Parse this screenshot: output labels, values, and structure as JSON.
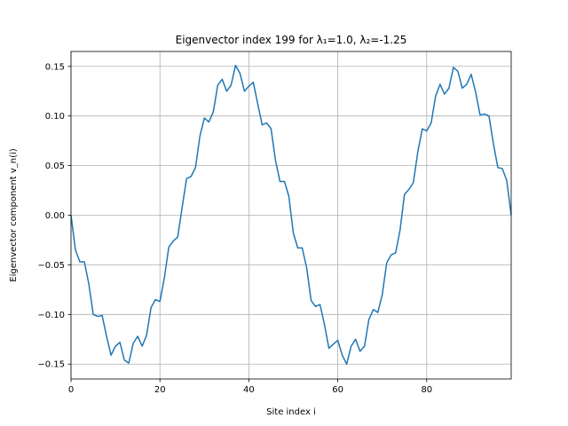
{
  "chart_data": {
    "type": "line",
    "title": "Eigenvector index 199 for λ₁=1.0, λ₂=-1.25",
    "xlabel": "Site index i",
    "ylabel": "Eigenvector component v_n(i)",
    "xlim": [
      0,
      99
    ],
    "ylim": [
      -0.165,
      0.165
    ],
    "xticks": [
      0,
      20,
      40,
      60,
      80
    ],
    "yticks": [
      -0.15,
      -0.1,
      -0.05,
      0.0,
      0.05,
      0.1,
      0.15
    ],
    "xtick_labels": [
      "0",
      "20",
      "40",
      "60",
      "80"
    ],
    "ytick_labels": [
      "−0.15",
      "−0.10",
      "−0.05",
      "0.00",
      "0.05",
      "0.10",
      "0.15"
    ],
    "grid": true,
    "series": [
      {
        "color": "#1f77b4",
        "x": [
          0,
          1,
          2,
          3,
          4,
          5,
          6,
          7,
          8,
          9,
          10,
          11,
          12,
          13,
          14,
          15,
          16,
          17,
          18,
          19,
          20,
          21,
          22,
          23,
          24,
          25,
          26,
          27,
          28,
          29,
          30,
          31,
          32,
          33,
          34,
          35,
          36,
          37,
          38,
          39,
          40,
          41,
          42,
          43,
          44,
          45,
          46,
          47,
          48,
          49,
          50,
          51,
          52,
          53,
          54,
          55,
          56,
          57,
          58,
          59,
          60,
          61,
          62,
          63,
          64,
          65,
          66,
          67,
          68,
          69,
          70,
          71,
          72,
          73,
          74,
          75,
          76,
          77,
          78,
          79,
          80,
          81,
          82,
          83,
          84,
          85,
          86,
          87,
          88,
          89,
          90,
          91,
          92,
          93,
          94,
          95,
          96,
          97,
          98,
          99
        ],
        "values": [
          0.0,
          -0.035,
          -0.047,
          -0.047,
          -0.069,
          -0.1,
          -0.102,
          -0.101,
          -0.122,
          -0.141,
          -0.132,
          -0.128,
          -0.146,
          -0.149,
          -0.129,
          -0.122,
          -0.132,
          -0.121,
          -0.093,
          -0.085,
          -0.087,
          -0.063,
          -0.032,
          -0.026,
          -0.022,
          0.008,
          0.037,
          0.039,
          0.048,
          0.08,
          0.098,
          0.094,
          0.104,
          0.131,
          0.137,
          0.125,
          0.131,
          0.151,
          0.143,
          0.125,
          0.13,
          0.134,
          0.112,
          0.091,
          0.093,
          0.087,
          0.055,
          0.034,
          0.034,
          0.019,
          -0.018,
          -0.033,
          -0.033,
          -0.053,
          -0.086,
          -0.092,
          -0.09,
          -0.11,
          -0.134,
          -0.13,
          -0.126,
          -0.141,
          -0.15,
          -0.132,
          -0.125,
          -0.137,
          -0.132,
          -0.105,
          -0.095,
          -0.098,
          -0.08,
          -0.048,
          -0.04,
          -0.038,
          -0.015,
          0.021,
          0.026,
          0.033,
          0.064,
          0.087,
          0.085,
          0.093,
          0.12,
          0.132,
          0.122,
          0.128,
          0.149,
          0.145,
          0.128,
          0.132,
          0.142,
          0.124,
          0.101,
          0.102,
          0.1,
          0.072,
          0.048,
          0.047,
          0.035,
          0.0
        ]
      }
    ]
  }
}
